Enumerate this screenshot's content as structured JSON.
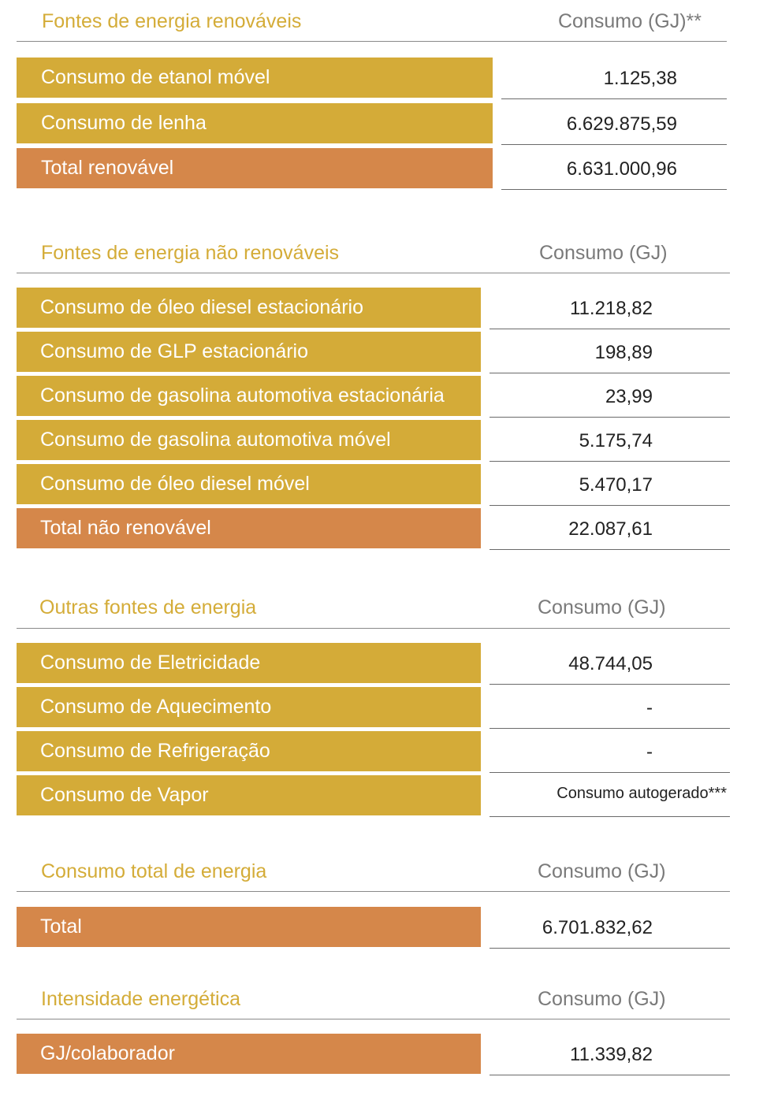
{
  "sections": [
    {
      "title": "Fontes de energia renováveis",
      "column_header": "Consumo (GJ)**",
      "rows": [
        {
          "label": "Consumo de etanol móvel",
          "value": "1.125,38",
          "style": "gold"
        },
        {
          "label": "Consumo de lenha",
          "value": "6.629.875,59",
          "style": "gold"
        },
        {
          "label": "Total renovável",
          "value": "6.631.000,96",
          "style": "orange"
        }
      ]
    },
    {
      "title": "Fontes de energia não renováveis",
      "column_header": "Consumo (GJ)",
      "rows": [
        {
          "label": "Consumo de óleo diesel estacionário",
          "value": "11.218,82",
          "style": "gold"
        },
        {
          "label": "Consumo de GLP estacionário",
          "value": "198,89",
          "style": "gold"
        },
        {
          "label": "Consumo de gasolina automotiva estacionária",
          "value": "23,99",
          "style": "gold"
        },
        {
          "label": "Consumo de gasolina automotiva móvel",
          "value": "5.175,74",
          "style": "gold"
        },
        {
          "label": "Consumo de óleo diesel móvel",
          "value": "5.470,17",
          "style": "gold"
        },
        {
          "label": "Total não renovável",
          "value": "22.087,61",
          "style": "orange"
        }
      ]
    },
    {
      "title": "Outras fontes de energia",
      "column_header": "Consumo (GJ)",
      "rows": [
        {
          "label": "Consumo de Eletricidade",
          "value": "48.744,05",
          "style": "gold"
        },
        {
          "label": "Consumo de Aquecimento",
          "value": "-",
          "style": "gold"
        },
        {
          "label": "Consumo de Refrigeração",
          "value": "-",
          "style": "gold"
        },
        {
          "label": "Consumo de Vapor",
          "value": "Consumo autogerado***",
          "style": "gold"
        }
      ]
    },
    {
      "title": "Consumo total de energia",
      "column_header": "Consumo (GJ)",
      "rows": [
        {
          "label": "Total",
          "value": "6.701.832,62",
          "style": "orange"
        }
      ]
    },
    {
      "title": "Intensidade energética",
      "column_header": "Consumo (GJ)",
      "rows": [
        {
          "label": "GJ/colaborador",
          "value": "11.339,82",
          "style": "orange"
        }
      ]
    }
  ]
}
